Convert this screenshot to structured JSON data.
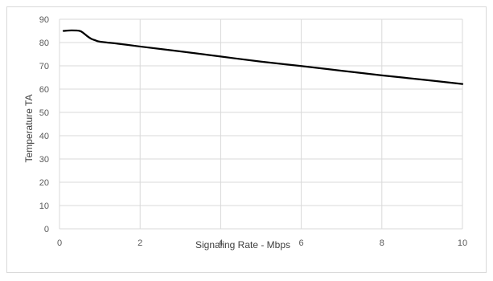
{
  "chart_data": {
    "type": "line",
    "title": "",
    "xlabel": "Signaling Rate - Mbps",
    "ylabel": "Temperature TA",
    "xlim": [
      0,
      10
    ],
    "ylim": [
      0,
      90
    ],
    "x_ticks": [
      0,
      2,
      4,
      6,
      8,
      10
    ],
    "y_ticks": [
      0,
      10,
      20,
      30,
      40,
      50,
      60,
      70,
      80,
      90
    ],
    "grid": true,
    "legend": "none",
    "series": [
      {
        "color": "#000000",
        "x": [
          0.1,
          0.3,
          0.5,
          0.6,
          0.7,
          0.8,
          0.9,
          1.0,
          1.5,
          2.0,
          3.0,
          4.0,
          5.0,
          6.0,
          7.0,
          8.0,
          9.0,
          10.0
        ],
        "y": [
          85.0,
          85.2,
          85.0,
          84.0,
          82.6,
          81.5,
          80.9,
          80.4,
          79.4,
          78.3,
          76.2,
          74.0,
          71.8,
          69.9,
          67.9,
          65.9,
          64.1,
          62.2
        ]
      }
    ]
  },
  "colors": {
    "grid": "#d9d9d9",
    "tick_text": "#595959",
    "frame": "#d9d9d9"
  }
}
